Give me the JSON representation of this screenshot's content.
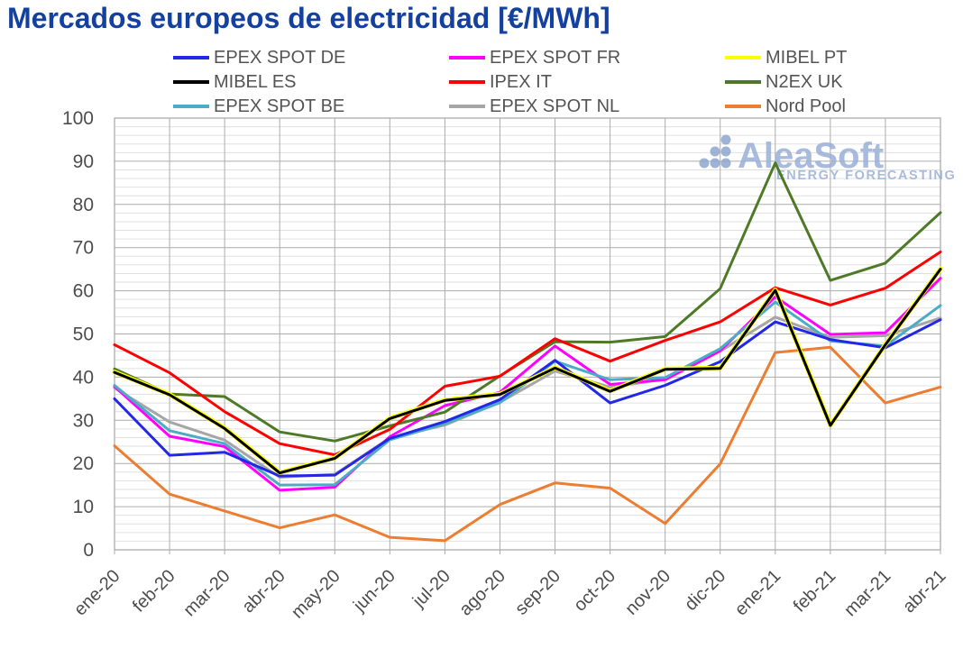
{
  "page": {
    "background": "#FFFFFF"
  },
  "header": {
    "title": "Mercados europeos de electricidad [€/MWh]",
    "title_color": "#1441A0"
  },
  "watermark": {
    "brand": "AleaSoft",
    "tagline": "ENERGY FORECASTING",
    "color": "#9BB0D8"
  },
  "axes": {
    "y_tick_labels": [
      "0",
      "10",
      "20",
      "30",
      "40",
      "50",
      "60",
      "70",
      "80",
      "90",
      "100"
    ],
    "tick_label_color": "#4D4D4D"
  },
  "chart_data": {
    "type": "line",
    "title": "Mercados europeos de electricidad [€/MWh]",
    "xlabel": "",
    "ylabel": "",
    "ylim": [
      0,
      100
    ],
    "y_tick_step": 10,
    "y_minor_step": 2,
    "grid": true,
    "legend_position": "top-center",
    "categories": [
      "ene-20",
      "feb-20",
      "mar-20",
      "abr-20",
      "may-20",
      "jun-20",
      "jul-20",
      "ago-20",
      "sep-20",
      "oct-20",
      "nov-20",
      "dic-20",
      "ene-21",
      "feb-21",
      "mar-21",
      "abr-21"
    ],
    "series": [
      {
        "name": "EPEX SPOT DE",
        "color": "#2328E6",
        "values": [
          35.0,
          21.9,
          22.6,
          17.1,
          17.3,
          25.8,
          29.7,
          34.8,
          43.9,
          34.0,
          38.1,
          43.6,
          52.8,
          48.7,
          46.8,
          53.3
        ]
      },
      {
        "name": "EPEX SPOT FR",
        "color": "#FF00FF",
        "values": [
          37.8,
          26.3,
          23.9,
          13.8,
          14.5,
          26.2,
          33.4,
          36.5,
          47.2,
          38.3,
          39.4,
          46.1,
          58.6,
          49.9,
          50.3,
          62.9
        ]
      },
      {
        "name": "MIBEL PT",
        "color": "#FFFF00",
        "values": [
          41.2,
          36.0,
          28.2,
          17.9,
          21.3,
          30.5,
          34.7,
          36.1,
          42.2,
          36.8,
          41.9,
          42.1,
          60.2,
          28.9,
          47.6,
          65.1
        ]
      },
      {
        "name": "MIBEL ES",
        "color": "#000000",
        "values": [
          41.1,
          35.9,
          28.1,
          17.8,
          21.2,
          30.4,
          34.6,
          36.0,
          42.1,
          36.7,
          41.8,
          42.0,
          60.1,
          28.8,
          47.5,
          65.0
        ]
      },
      {
        "name": "IPEX IT",
        "color": "#FF0000",
        "values": [
          47.5,
          41.0,
          32.0,
          24.6,
          22.0,
          27.9,
          37.9,
          40.2,
          48.9,
          43.7,
          48.5,
          52.8,
          60.7,
          56.7,
          60.6,
          69.0
        ]
      },
      {
        "name": "N2EX UK",
        "color": "#4E7A27",
        "values": [
          41.9,
          36.1,
          35.5,
          27.3,
          25.2,
          28.7,
          31.9,
          40.3,
          48.2,
          48.1,
          49.4,
          60.5,
          89.6,
          62.4,
          66.4,
          78.1
        ]
      },
      {
        "name": "EPEX SPOT BE",
        "color": "#4BACC6",
        "values": [
          38.1,
          27.6,
          24.6,
          15.0,
          15.1,
          25.5,
          29.2,
          34.1,
          43.7,
          39.4,
          39.9,
          46.6,
          57.4,
          48.4,
          47.2,
          56.6
        ]
      },
      {
        "name": "EPEX SPOT NL",
        "color": "#A6A6A6",
        "values": [
          37.5,
          29.6,
          25.4,
          16.8,
          17.5,
          25.9,
          28.9,
          34.2,
          41.4,
          37.7,
          39.5,
          46.0,
          53.9,
          49.2,
          49.6,
          53.7
        ]
      },
      {
        "name": "Nord Pool",
        "color": "#ED7D31",
        "values": [
          24.1,
          12.9,
          9.0,
          5.1,
          8.1,
          2.9,
          2.1,
          10.5,
          15.5,
          14.3,
          6.1,
          19.9,
          45.7,
          46.9,
          34.0,
          37.7
        ]
      }
    ]
  }
}
